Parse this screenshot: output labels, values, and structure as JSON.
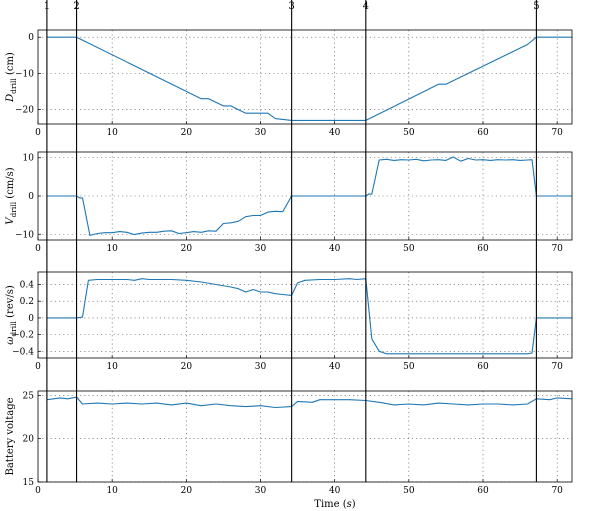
{
  "chart_data": {
    "type": "line",
    "xlabel_prefix": "Time (",
    "xlabel_unit": "s",
    "xlabel_suffix": ")",
    "xlim": [
      0,
      72
    ],
    "xticks": [
      0,
      10,
      20,
      30,
      40,
      50,
      60,
      70
    ],
    "series_color": "#1f77b4",
    "phase_markers": [
      {
        "label": "1",
        "x": 1.2
      },
      {
        "label": "2",
        "x": 5.2
      },
      {
        "label": "3",
        "x": 34.2
      },
      {
        "label": "4",
        "x": 44.2
      },
      {
        "label": "5",
        "x": 67.2
      }
    ],
    "panels": [
      {
        "ylabel_main": "D",
        "ylabel_sub": "drill",
        "ylabel_suffix": " (cm)",
        "ylim": [
          -24,
          2
        ],
        "yticks": [
          -20,
          -10,
          0
        ],
        "ytick_labels": [
          "−20",
          "−10",
          "0"
        ],
        "x": [
          1.2,
          5.2,
          22,
          23,
          25,
          26,
          28,
          29,
          31,
          32,
          34.2,
          44.2,
          54,
          55,
          66,
          67.2,
          72
        ],
        "y": [
          0,
          0,
          -17,
          -17,
          -19,
          -19,
          -21,
          -21,
          -21,
          -22.5,
          -23,
          -23,
          -13,
          -13,
          -2,
          0,
          0
        ]
      },
      {
        "ylabel_main": "V",
        "ylabel_sub": "drill",
        "ylabel_suffix": " (cm/s)",
        "ylim": [
          -11.5,
          11.5
        ],
        "yticks": [
          -10,
          0,
          10
        ],
        "ytick_labels": [
          "−10",
          "0",
          "10"
        ],
        "x": [
          1.2,
          5.2,
          5.6,
          6,
          7,
          8,
          9,
          10,
          11,
          12,
          13,
          14,
          15,
          16,
          17,
          18,
          19,
          20,
          21,
          22,
          23,
          24,
          25,
          26,
          27,
          28,
          29,
          30,
          31,
          32,
          33,
          34.2,
          44.2,
          44.6,
          45,
          46,
          47,
          48,
          49,
          50,
          51,
          52,
          53,
          54,
          55,
          56,
          57,
          58,
          59,
          60,
          61,
          62,
          63,
          64,
          65,
          66,
          66.6,
          67.2,
          72
        ],
        "y": [
          0,
          0,
          -0.5,
          -0.5,
          -10.3,
          -9.8,
          -9.6,
          -9.6,
          -9.3,
          -9.5,
          -10.1,
          -9.7,
          -9.5,
          -9.5,
          -9.2,
          -9.1,
          -9.8,
          -9.6,
          -9.3,
          -9.5,
          -9.1,
          -9.2,
          -7.2,
          -7,
          -6.6,
          -5.4,
          -5.1,
          -5.1,
          -4.2,
          -4,
          -4.1,
          0,
          0,
          0.5,
          0.5,
          9.4,
          9.6,
          9.3,
          9.5,
          9.4,
          9.6,
          9.2,
          9.4,
          9.5,
          9.3,
          10.2,
          9.1,
          9.8,
          9.4,
          9.5,
          9.3,
          9.5,
          9.4,
          9.5,
          9.3,
          9.4,
          9.5,
          0,
          0
        ]
      },
      {
        "ylabel_main": "ω",
        "ylabel_sub": "drill",
        "ylabel_suffix": " (rev/s)",
        "ylim": [
          -0.48,
          0.55
        ],
        "yticks": [
          -0.4,
          -0.2,
          0,
          0.2,
          0.4
        ],
        "ytick_labels": [
          "−0.4",
          "−0.2",
          "0",
          "0.2",
          "0.4"
        ],
        "x": [
          1.2,
          5.2,
          6,
          6.8,
          8,
          10,
          12,
          13,
          14,
          15,
          16,
          18,
          20,
          22,
          24,
          26,
          27,
          28,
          29,
          30,
          31,
          32,
          33,
          34.2,
          35,
          36,
          38,
          40,
          42,
          43,
          44.2,
          45,
          46,
          47,
          50,
          55,
          60,
          66,
          66.6,
          67.2,
          72
        ],
        "y": [
          0,
          0,
          0.01,
          0.45,
          0.46,
          0.46,
          0.46,
          0.45,
          0.47,
          0.46,
          0.46,
          0.46,
          0.45,
          0.43,
          0.4,
          0.37,
          0.35,
          0.31,
          0.34,
          0.31,
          0.31,
          0.29,
          0.28,
          0.27,
          0.42,
          0.45,
          0.46,
          0.46,
          0.47,
          0.46,
          0.47,
          -0.25,
          -0.4,
          -0.43,
          -0.43,
          -0.43,
          -0.43,
          -0.43,
          -0.42,
          0,
          0
        ]
      },
      {
        "ylabel_main": "Battery voltage",
        "ylabel_sub": "",
        "ylabel_suffix": "",
        "ylim": [
          15,
          25.5
        ],
        "yticks": [
          15,
          20,
          25
        ],
        "ytick_labels": [
          "15",
          "20",
          "25"
        ],
        "x": [
          1.2,
          3,
          4,
          5.2,
          6,
          8,
          10,
          12,
          14,
          16,
          18,
          20,
          22,
          24,
          26,
          28,
          30,
          32,
          34.2,
          35,
          37,
          38,
          40,
          42,
          44.2,
          46,
          48,
          50,
          52,
          54,
          56,
          58,
          60,
          62,
          64,
          66,
          67.2,
          69,
          70,
          72
        ],
        "y": [
          24.5,
          24.7,
          24.6,
          24.8,
          24,
          24.1,
          24,
          24.1,
          24,
          24.1,
          23.9,
          24.1,
          23.8,
          24,
          23.8,
          23.7,
          23.8,
          23.6,
          23.7,
          24.3,
          24.2,
          24.5,
          24.5,
          24.5,
          24.4,
          24.2,
          23.9,
          24,
          23.9,
          24.1,
          24,
          23.9,
          24,
          24,
          23.9,
          24,
          24.6,
          24.5,
          24.7,
          24.6
        ]
      }
    ]
  }
}
